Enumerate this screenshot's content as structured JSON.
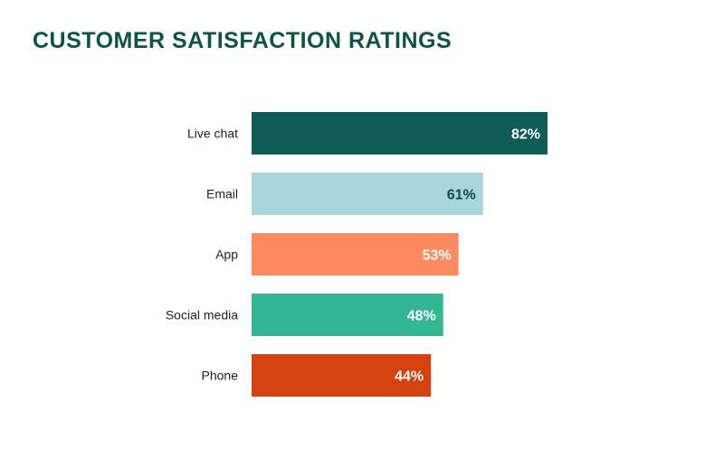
{
  "chart_data": {
    "type": "bar",
    "orientation": "horizontal",
    "title": "CUSTOMER SATISFACTION RATINGS",
    "categories": [
      "Live chat",
      "Email",
      "App",
      "Social media",
      "Phone"
    ],
    "values": [
      82,
      61,
      53,
      48,
      44
    ],
    "data_labels": [
      "82%",
      "61%",
      "53%",
      "48%",
      "44%"
    ],
    "colors": [
      "#0e5c56",
      "#a9d6dd",
      "#fd8b60",
      "#33b694",
      "#d4430f"
    ],
    "label_colors": [
      "#ffffff",
      "#0e4a44",
      "#ffffff",
      "#ffffff",
      "#ffffff"
    ],
    "unit": "%",
    "grid": false,
    "legend": "none"
  }
}
